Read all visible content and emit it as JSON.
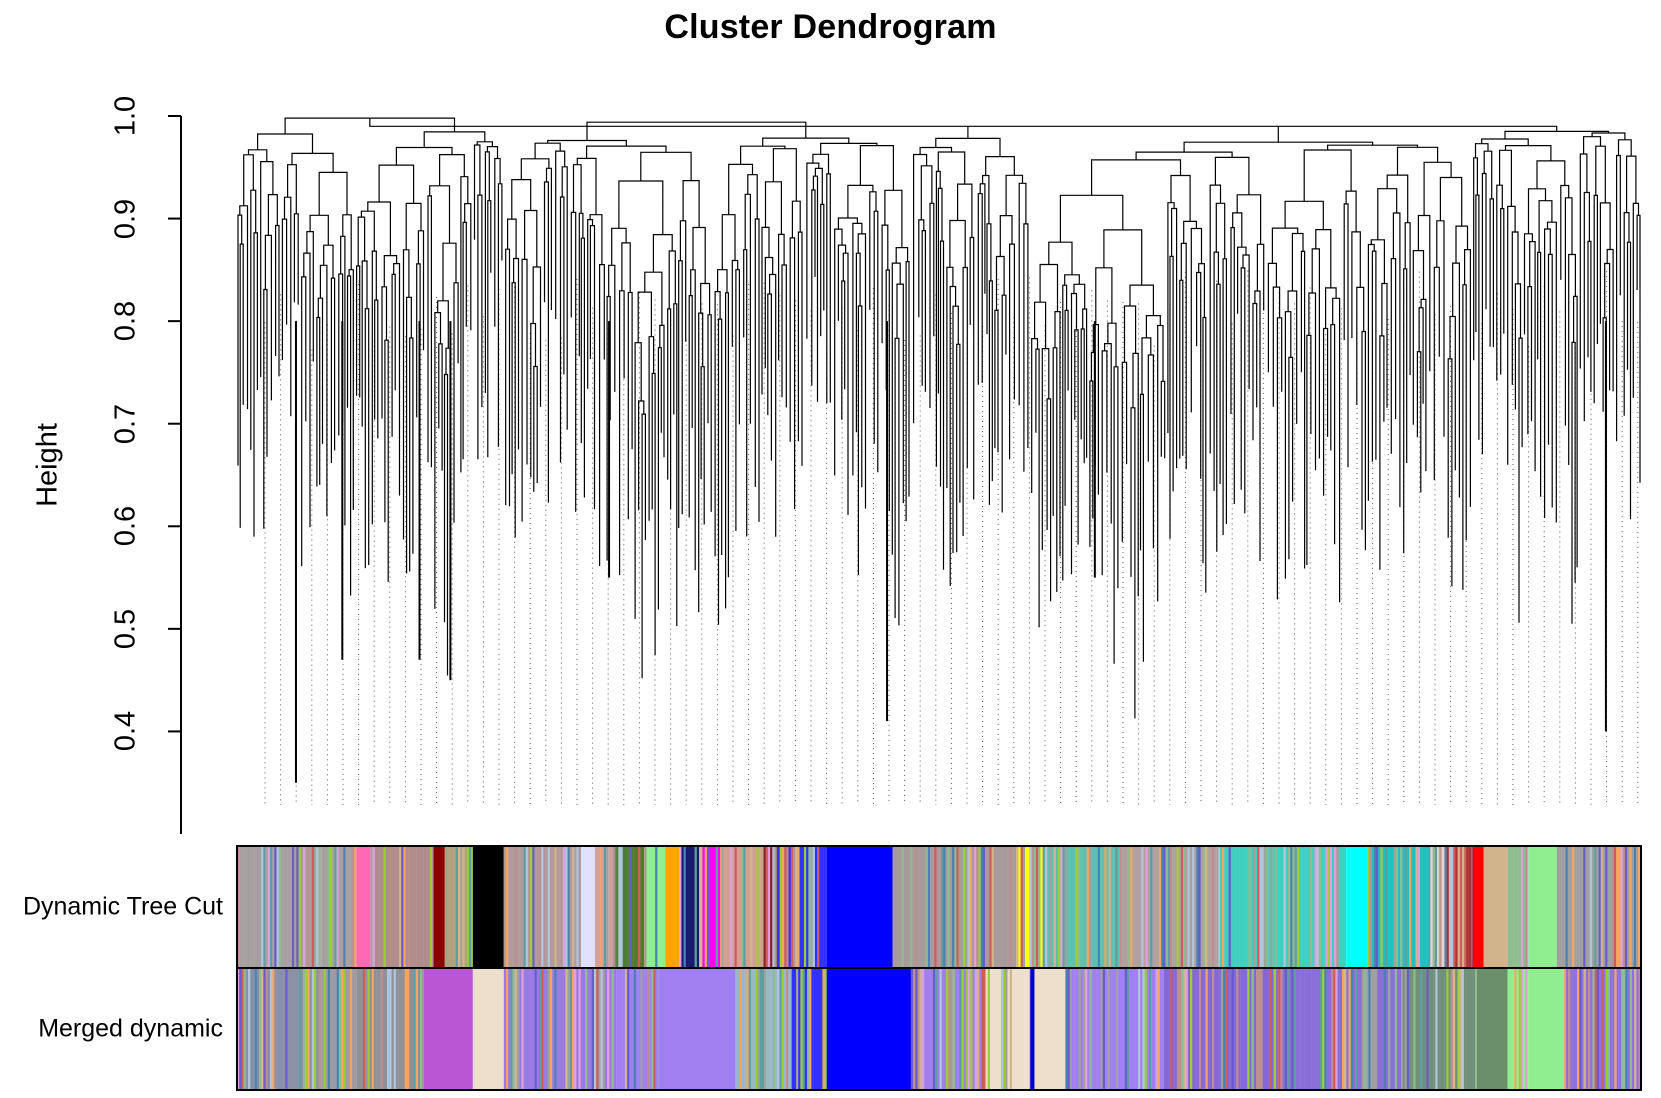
{
  "chart_data": {
    "type": "dendrogram",
    "title": "Cluster Dendrogram",
    "ylabel": "Height",
    "xlabel": "",
    "ylim": [
      0.3,
      1.0
    ],
    "yticks": [
      {
        "value": 0.4,
        "label": "0.4"
      },
      {
        "value": 0.5,
        "label": "0.5"
      },
      {
        "value": 0.6,
        "label": "0.6"
      },
      {
        "value": 0.7,
        "label": "0.7"
      },
      {
        "value": 0.8,
        "label": "0.8"
      },
      {
        "value": 0.9,
        "label": "0.9"
      },
      {
        "value": 1.0,
        "label": "1.0"
      }
    ],
    "n_leaves": 1400,
    "top_merge_height": 0.99,
    "deep_branches": [
      {
        "leaf_frac": 0.042,
        "min_height": 0.35
      },
      {
        "leaf_frac": 0.075,
        "min_height": 0.47
      },
      {
        "leaf_frac": 0.13,
        "min_height": 0.47
      },
      {
        "leaf_frac": 0.152,
        "min_height": 0.45
      },
      {
        "leaf_frac": 0.265,
        "min_height": 0.55
      },
      {
        "leaf_frac": 0.463,
        "min_height": 0.41
      },
      {
        "leaf_frac": 0.611,
        "min_height": 0.55
      },
      {
        "leaf_frac": 0.975,
        "min_height": 0.4
      }
    ],
    "color_rows": [
      {
        "label": "Dynamic Tree Cut",
        "segments": [
          {
            "end": 0.06,
            "color": "#a8a0a0",
            "mix": true
          },
          {
            "end": 0.085,
            "color": "#a8a0a0",
            "mix": true
          },
          {
            "end": 0.095,
            "color": "#ff69b4",
            "mix": false
          },
          {
            "end": 0.14,
            "color": "#b08c8c",
            "mix": true
          },
          {
            "end": 0.148,
            "color": "#8b0000",
            "mix": false
          },
          {
            "end": 0.168,
            "color": "#b0a080",
            "mix": true
          },
          {
            "end": 0.19,
            "color": "#000000",
            "mix": false
          },
          {
            "end": 0.245,
            "color": "#b09a9a",
            "mix": true
          },
          {
            "end": 0.255,
            "color": "#e0e0ff",
            "mix": false
          },
          {
            "end": 0.27,
            "color": "#d0a0a0",
            "mix": true
          },
          {
            "end": 0.29,
            "color": "#4d7f2e",
            "mix": true
          },
          {
            "end": 0.305,
            "color": "#90ee90",
            "mix": true
          },
          {
            "end": 0.315,
            "color": "#ffa500",
            "mix": false
          },
          {
            "end": 0.33,
            "color": "#191970",
            "mix": true
          },
          {
            "end": 0.345,
            "color": "#ff00ff",
            "mix": true
          },
          {
            "end": 0.375,
            "color": "#d0a090",
            "mix": true
          },
          {
            "end": 0.385,
            "color": "#8b2020",
            "mix": true
          },
          {
            "end": 0.42,
            "color": "#3030ff",
            "mix": true
          },
          {
            "end": 0.467,
            "color": "#0000ff",
            "mix": false
          },
          {
            "end": 0.555,
            "color": "#a89a9a",
            "mix": true
          },
          {
            "end": 0.577,
            "color": "#ffff00",
            "mix": true
          },
          {
            "end": 0.63,
            "color": "#60c0b0",
            "mix": true
          },
          {
            "end": 0.7,
            "color": "#b0a0a0",
            "mix": true
          },
          {
            "end": 0.79,
            "color": "#40d0c0",
            "mix": true
          },
          {
            "end": 0.805,
            "color": "#00ffff",
            "mix": false
          },
          {
            "end": 0.85,
            "color": "#20c0c0",
            "mix": true
          },
          {
            "end": 0.86,
            "color": "#e0d0d0",
            "mix": true
          },
          {
            "end": 0.88,
            "color": "#b03030",
            "mix": true
          },
          {
            "end": 0.888,
            "color": "#ff0000",
            "mix": false
          },
          {
            "end": 0.905,
            "color": "#d2b48c",
            "mix": false
          },
          {
            "end": 0.92,
            "color": "#8fbc8f",
            "mix": true
          },
          {
            "end": 0.94,
            "color": "#90ee90",
            "mix": false
          },
          {
            "end": 1.0,
            "color": "#a0a0a0",
            "mix": true
          }
        ]
      },
      {
        "label": "Merged dynamic",
        "segments": [
          {
            "end": 0.06,
            "color": "#8a90a8",
            "mix": true
          },
          {
            "end": 0.085,
            "color": "#a09aa0",
            "mix": true
          },
          {
            "end": 0.133,
            "color": "#909098",
            "mix": true
          },
          {
            "end": 0.168,
            "color": "#ba55d3",
            "mix": false
          },
          {
            "end": 0.19,
            "color": "#eedfcc",
            "mix": false
          },
          {
            "end": 0.27,
            "color": "#9a7ae0",
            "mix": true
          },
          {
            "end": 0.3,
            "color": "#a080f0",
            "mix": true
          },
          {
            "end": 0.355,
            "color": "#a080f0",
            "mix": false
          },
          {
            "end": 0.395,
            "color": "#98b8c8",
            "mix": true
          },
          {
            "end": 0.42,
            "color": "#3030ff",
            "mix": true
          },
          {
            "end": 0.48,
            "color": "#0000ff",
            "mix": false
          },
          {
            "end": 0.53,
            "color": "#a080e8",
            "mix": true
          },
          {
            "end": 0.565,
            "color": "#eedfcc",
            "mix": true
          },
          {
            "end": 0.568,
            "color": "#0000cc",
            "mix": false
          },
          {
            "end": 0.59,
            "color": "#eedfcc",
            "mix": false
          },
          {
            "end": 0.66,
            "color": "#a080f0",
            "mix": true
          },
          {
            "end": 0.74,
            "color": "#8468d8",
            "mix": true
          },
          {
            "end": 0.83,
            "color": "#8a6ed8",
            "mix": true
          },
          {
            "end": 0.883,
            "color": "#70907a",
            "mix": true
          },
          {
            "end": 0.905,
            "color": "#6b8e6b",
            "mix": false
          },
          {
            "end": 0.92,
            "color": "#90ee90",
            "mix": true
          },
          {
            "end": 0.945,
            "color": "#90ee90",
            "mix": false
          },
          {
            "end": 1.0,
            "color": "#9070e0",
            "mix": true
          }
        ]
      }
    ]
  }
}
